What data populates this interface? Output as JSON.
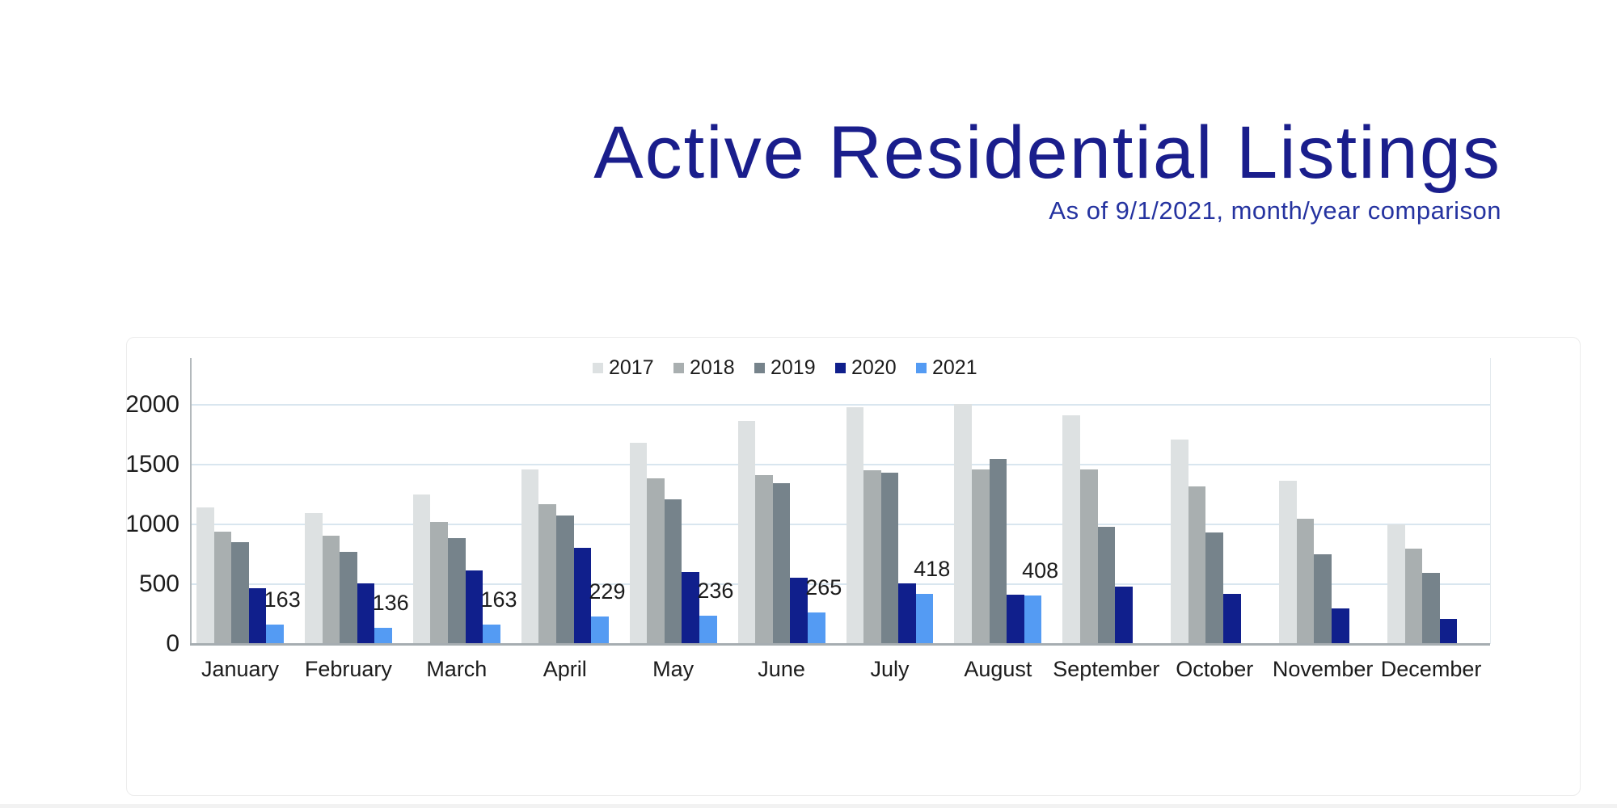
{
  "header": {
    "title": "Active Residential Listings",
    "subtitle": "As of 9/1/2021, month/year comparison",
    "title_color": "#1a1e8c",
    "subtitle_color": "#2533a0"
  },
  "chart_data": {
    "type": "bar",
    "title": "Active Residential Listings",
    "subtitle": "As of 9/1/2021, month/year comparison",
    "categories": [
      "January",
      "February",
      "March",
      "April",
      "May",
      "June",
      "July",
      "August",
      "September",
      "October",
      "November",
      "December"
    ],
    "series": [
      {
        "name": "2017",
        "color": "#dde1e2",
        "values": [
          1140,
          1095,
          1250,
          1460,
          1685,
          1865,
          1980,
          2005,
          1910,
          1710,
          1365,
          1000
        ]
      },
      {
        "name": "2018",
        "color": "#a9afb0",
        "values": [
          940,
          905,
          1020,
          1170,
          1385,
          1410,
          1455,
          1460,
          1460,
          1320,
          1045,
          795
        ]
      },
      {
        "name": "2019",
        "color": "#76838b",
        "values": [
          850,
          770,
          885,
          1075,
          1210,
          1345,
          1430,
          1550,
          980,
          935,
          750,
          595
        ]
      },
      {
        "name": "2020",
        "color": "#101f8c",
        "values": [
          465,
          505,
          615,
          805,
          600,
          555,
          505,
          415,
          480,
          420,
          297,
          209
        ]
      },
      {
        "name": "2021",
        "color": "#549bf3",
        "values": [
          163,
          136,
          163,
          229,
          236,
          265,
          418,
          408,
          null,
          null,
          null,
          null
        ],
        "show_labels": true
      }
    ],
    "data_labels_shown": [
      "163",
      "136",
      "163",
      "229",
      "236",
      "265",
      "418",
      "408"
    ],
    "ylim": [
      0,
      2400
    ],
    "yticks": [
      {
        "value": 0,
        "label": "0"
      },
      {
        "value": 500,
        "label": "500"
      },
      {
        "value": 1000,
        "label": "1000"
      },
      {
        "value": 1500,
        "label": "1500"
      },
      {
        "value": 2000,
        "label": "2000"
      }
    ],
    "grid": true,
    "legend_position": "top-center",
    "colors": {
      "gridline": "#d9e6ef",
      "y_axis": "#b3b9bc",
      "x_axis": "#a6adb1",
      "text": "#1c1c1c"
    }
  }
}
